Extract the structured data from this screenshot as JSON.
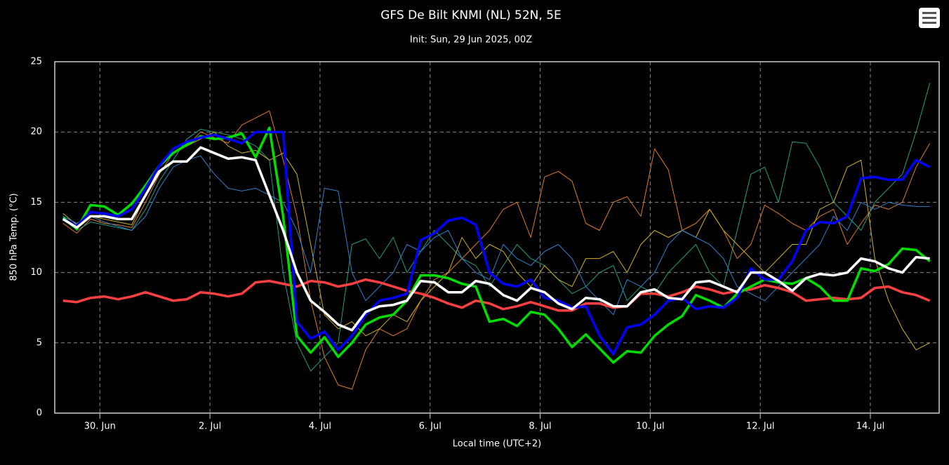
{
  "chart_data": {
    "type": "line",
    "title": "GFS De Bilt KNMI (NL) 52N, 5E",
    "subtitle": "Init: Sun, 29 Jun 2025, 00Z",
    "x_label": "Local time (UTC+2)",
    "y_label": "850 hPa Temp. (°C)",
    "x": [
      0.33,
      0.58,
      0.83,
      1.08,
      1.33,
      1.58,
      1.83,
      2.08,
      2.33,
      2.58,
      2.83,
      3.08,
      3.33,
      3.58,
      3.83,
      4.08,
      4.33,
      4.58,
      4.83,
      5.08,
      5.33,
      5.58,
      5.83,
      6.08,
      6.33,
      6.58,
      6.83,
      7.08,
      7.33,
      7.58,
      7.83,
      8.08,
      8.33,
      8.58,
      8.83,
      9.08,
      9.33,
      9.58,
      9.83,
      10.08,
      10.33,
      10.58,
      10.83,
      11.08,
      11.33,
      11.58,
      11.83,
      12.08,
      12.33,
      12.58,
      12.83,
      13.08,
      13.33,
      13.58,
      13.83,
      14.08,
      14.33,
      14.58,
      14.83,
      15.08,
      15.33,
      15.58,
      15.83,
      16.08
    ],
    "xlim": [
      0.18,
      16.25
    ],
    "xticks": [
      {
        "value": 1,
        "label": "30. Jun"
      },
      {
        "value": 3,
        "label": "2. Jul"
      },
      {
        "value": 5,
        "label": "4. Jul"
      },
      {
        "value": 7,
        "label": "6. Jul"
      },
      {
        "value": 9,
        "label": "8. Jul"
      },
      {
        "value": 11,
        "label": "10. Jul"
      },
      {
        "value": 13,
        "label": "12. Jul"
      },
      {
        "value": 15,
        "label": "14. Jul"
      }
    ],
    "ylim": [
      0,
      25
    ],
    "yticks": [
      0,
      5,
      10,
      15,
      20,
      25
    ],
    "grid": true,
    "members": [
      {
        "color": "#e07b20",
        "values": [
          13.5,
          12.8,
          13.8,
          13.5,
          13.4,
          13.2,
          15,
          17,
          18.5,
          19,
          20,
          19.6,
          19.2,
          20.5,
          21,
          21.5,
          18,
          14,
          8,
          4,
          2,
          1.7,
          4.5,
          6,
          5.5,
          6,
          8,
          9.5,
          10,
          11,
          12,
          13,
          14.5,
          15,
          12.5,
          16.8,
          17.2,
          16.5,
          13.5,
          13,
          15,
          15.4,
          14,
          18.8,
          17.3,
          13,
          13.5,
          14.5,
          13,
          11,
          12,
          14.8,
          14.2,
          13.5,
          13,
          14,
          14.5,
          12,
          13.5,
          14.8,
          14.5,
          15,
          17.5,
          19.2
        ]
      },
      {
        "color": "#20a080",
        "values": [
          14,
          13,
          13.6,
          13.4,
          13.2,
          13,
          14.5,
          16.5,
          18,
          19.5,
          20.2,
          20,
          19.8,
          19.5,
          19,
          18,
          10,
          5,
          3,
          4,
          5,
          12,
          12.4,
          11,
          12.5,
          10,
          11.5,
          13,
          12,
          11,
          10.5,
          9,
          10.5,
          12,
          11,
          10.5,
          9.5,
          8.5,
          9,
          10,
          10.5,
          8,
          9,
          8.5,
          10,
          11,
          12,
          10,
          9,
          13,
          17,
          17.5,
          15,
          19.3,
          19.2,
          17.5,
          15,
          14,
          13,
          15,
          16,
          17,
          20,
          23.5
        ]
      },
      {
        "color": "#d0b020",
        "values": [
          14.2,
          13.4,
          14,
          13.8,
          13.6,
          13.4,
          15.5,
          17.5,
          18.5,
          19,
          19.5,
          20,
          19,
          18.5,
          18.7,
          18,
          18.5,
          17,
          12,
          7,
          6,
          6.5,
          5.5,
          6,
          7,
          6.5,
          8,
          9,
          10,
          12.5,
          11,
          12,
          11.5,
          10,
          9,
          10.5,
          9.5,
          9,
          11,
          11,
          11.5,
          10,
          12,
          13,
          12.5,
          13,
          12.5,
          14.5,
          13,
          12,
          11,
          10,
          11,
          12,
          12,
          14.5,
          15,
          17.5,
          18,
          11,
          8,
          6,
          4.5,
          5
        ]
      },
      {
        "color": "#3080d0",
        "values": [
          14,
          13.5,
          14,
          13.6,
          13.3,
          13,
          14,
          16,
          17.5,
          18,
          18.3,
          17,
          16,
          15.8,
          16,
          15.5,
          15,
          13,
          10,
          16,
          15.8,
          10,
          8,
          9,
          10,
          12,
          11.5,
          12.5,
          13,
          11,
          10,
          9.5,
          12,
          11,
          10.5,
          11.5,
          12,
          11,
          9,
          8,
          7,
          9.5,
          9,
          10,
          12,
          13,
          12.5,
          12,
          11,
          9,
          8.5,
          8,
          9,
          10,
          11,
          12,
          14,
          13,
          15,
          14.5,
          15,
          14.8,
          14.7,
          14.7
        ]
      }
    ],
    "series": [
      {
        "color": "#ff4040",
        "values": [
          8,
          7.9,
          8.2,
          8.3,
          8.1,
          8.3,
          8.6,
          8.3,
          8,
          8.1,
          8.6,
          8.5,
          8.3,
          8.5,
          9.3,
          9.4,
          9.2,
          9,
          9.4,
          9.3,
          9,
          9.2,
          9.5,
          9.3,
          9,
          8.7,
          8.5,
          8.2,
          7.8,
          7.5,
          8,
          7.8,
          7.4,
          7.6,
          7.9,
          7.6,
          7.3,
          7.3,
          7.8,
          7.8,
          7.5,
          7.6,
          8.5,
          8.5,
          8.3,
          8.6,
          9,
          8.8,
          8.5,
          8.7,
          8.8,
          9.1,
          8.9,
          8.6,
          8,
          8.1,
          8.2,
          8.1,
          8.2,
          8.9,
          9,
          8.6,
          8.4,
          8
        ]
      },
      {
        "color": "#00dd00",
        "values": [
          13.9,
          13.1,
          14.8,
          14.7,
          14.1,
          14.9,
          16.2,
          17.6,
          18.5,
          19.1,
          19.7,
          19.5,
          19.6,
          19.9,
          18.2,
          20.3,
          14,
          5.5,
          4.3,
          5.4,
          4,
          5,
          6.3,
          6.8,
          7,
          8,
          9.8,
          9.8,
          9.6,
          9.2,
          9,
          6.5,
          6.7,
          6.2,
          7.2,
          7,
          6,
          4.7,
          5.6,
          4.6,
          3.6,
          4.4,
          4.3,
          5.5,
          6.3,
          6.9,
          8.4,
          8,
          7.5,
          8.5,
          9,
          9.5,
          9.3,
          9.2,
          9.6,
          9,
          8,
          8,
          10.3,
          10.1,
          10.6,
          11.7,
          11.6,
          10.8
        ]
      },
      {
        "color": "#0000ff",
        "values": [
          13.8,
          13.3,
          14.3,
          14.2,
          14,
          14.5,
          16,
          17.6,
          18.8,
          19.3,
          19.6,
          19.8,
          19.5,
          19.2,
          20,
          20,
          20,
          6.5,
          5.3,
          5.8,
          4.5,
          5.5,
          7,
          8,
          8.2,
          8.5,
          12.3,
          12.8,
          13.7,
          13.9,
          13.4,
          10,
          9.2,
          9,
          9.5,
          8.2,
          8,
          7.5,
          7.6,
          5.5,
          4.2,
          6.1,
          6.3,
          7,
          8,
          8.2,
          7.4,
          7.6,
          7.5,
          8.2,
          10.3,
          9.5,
          9.5,
          10.8,
          13,
          13.6,
          13.5,
          14,
          16.7,
          16.8,
          16.6,
          16.6,
          18,
          17.5
        ]
      },
      {
        "color": "#ffffff",
        "values": [
          13.8,
          13.2,
          14,
          14,
          13.8,
          13.8,
          15.5,
          17.2,
          17.9,
          17.9,
          18.9,
          18.5,
          18.1,
          18.2,
          18,
          15.5,
          13,
          10,
          8,
          7.2,
          6.3,
          5.9,
          7.2,
          7.6,
          7.7,
          8,
          9.4,
          9.3,
          8.6,
          8.6,
          9.4,
          9.2,
          8.4,
          8,
          8.9,
          8.6,
          7.8,
          7.4,
          8.2,
          8.1,
          7.6,
          7.6,
          8.6,
          8.8,
          8.2,
          8.1,
          9.3,
          9.4,
          9,
          8.6,
          10,
          10,
          9.4,
          8.7,
          9.6,
          9.9,
          9.8,
          10,
          11,
          10.8,
          10.3,
          10,
          11.1,
          11
        ]
      }
    ]
  }
}
